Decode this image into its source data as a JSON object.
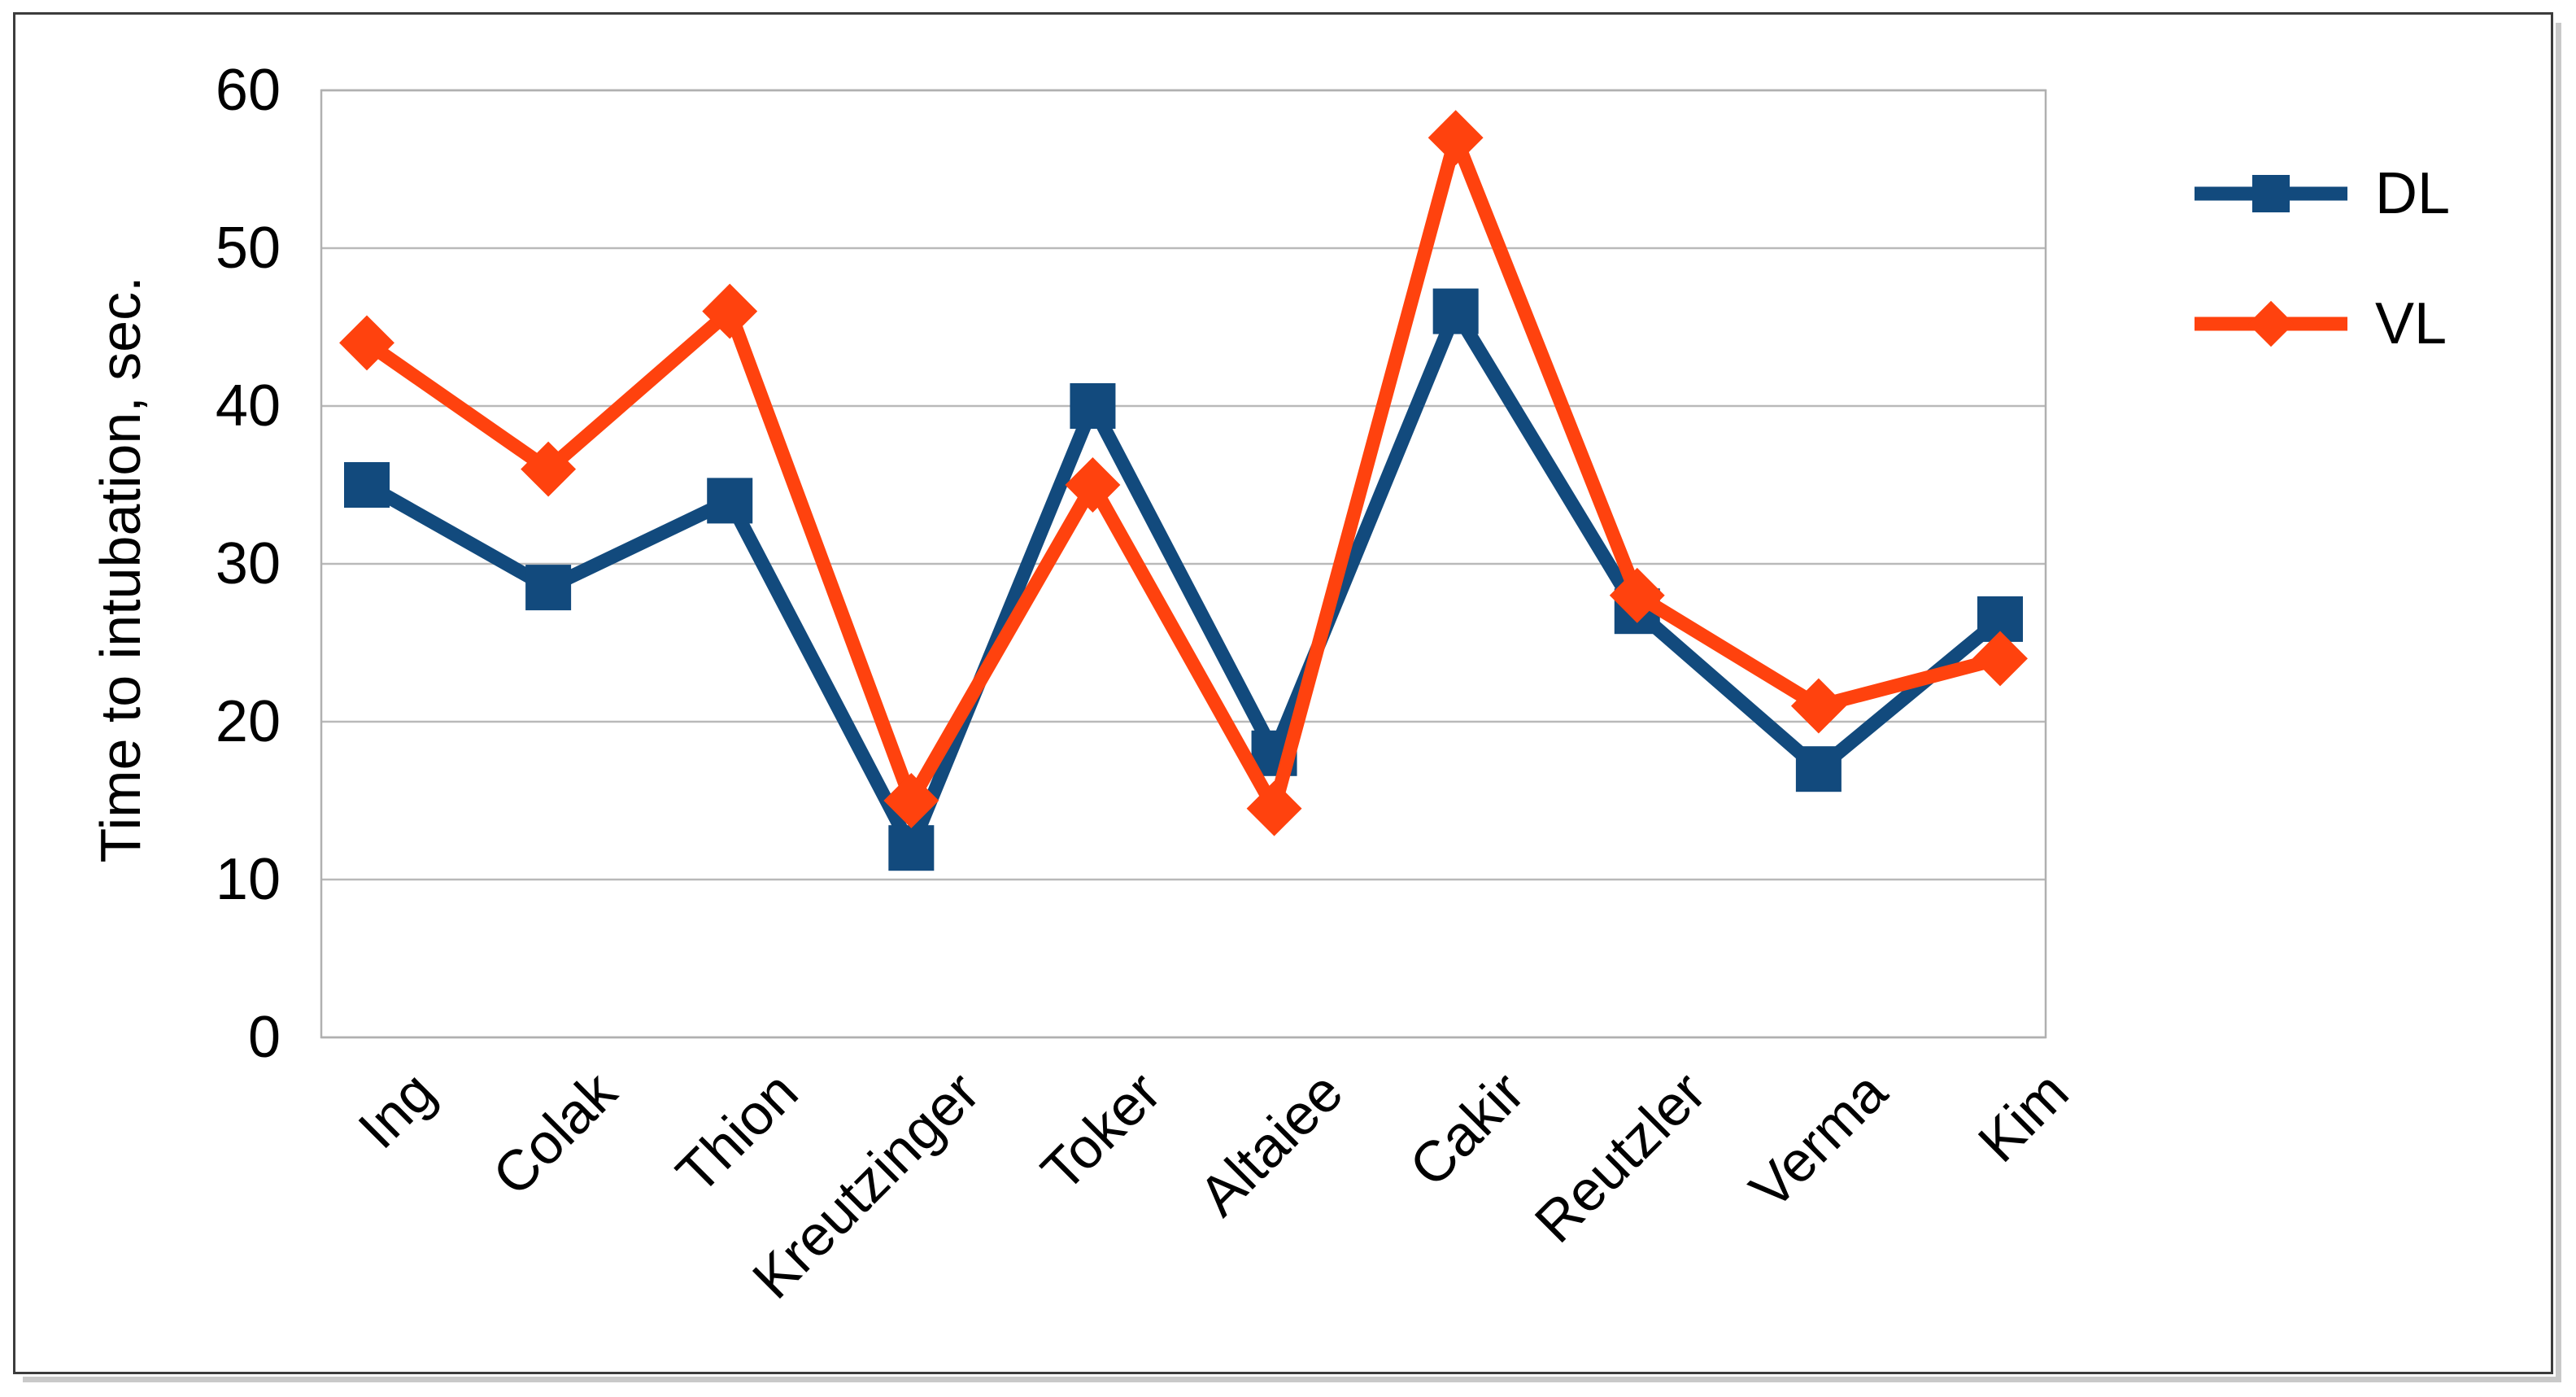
{
  "chart_data": {
    "type": "line",
    "title": "",
    "xlabel": "",
    "ylabel": "Time to intubation, sec.",
    "ylim": [
      0,
      60
    ],
    "yticks": [
      0,
      10,
      20,
      30,
      40,
      50,
      60
    ],
    "grid": true,
    "legend_position": "top-right",
    "categories": [
      "Ing",
      "Colak",
      "Thion",
      "Kreutzinger",
      "Toker",
      "Altaiee",
      "Cakir",
      "Reutzler",
      "Verma",
      "Kim"
    ],
    "series": [
      {
        "name": "DL",
        "marker": "square",
        "color": "#124A7D",
        "values": [
          35,
          28.5,
          34,
          12,
          40,
          18,
          46,
          27,
          17,
          26.5
        ]
      },
      {
        "name": "VL",
        "marker": "diamond",
        "color": "#FF420E",
        "values": [
          44,
          36,
          46,
          15,
          35,
          14.5,
          57,
          28,
          21,
          24
        ]
      }
    ]
  },
  "styles": {
    "grid_color": "#b9b9b9",
    "axis_color": "#b0b0b0",
    "text_color": "#000000",
    "frame_border_color": "#3c3c3c",
    "frame_shadow_color": "#c9c9c9",
    "background": "#ffffff"
  }
}
